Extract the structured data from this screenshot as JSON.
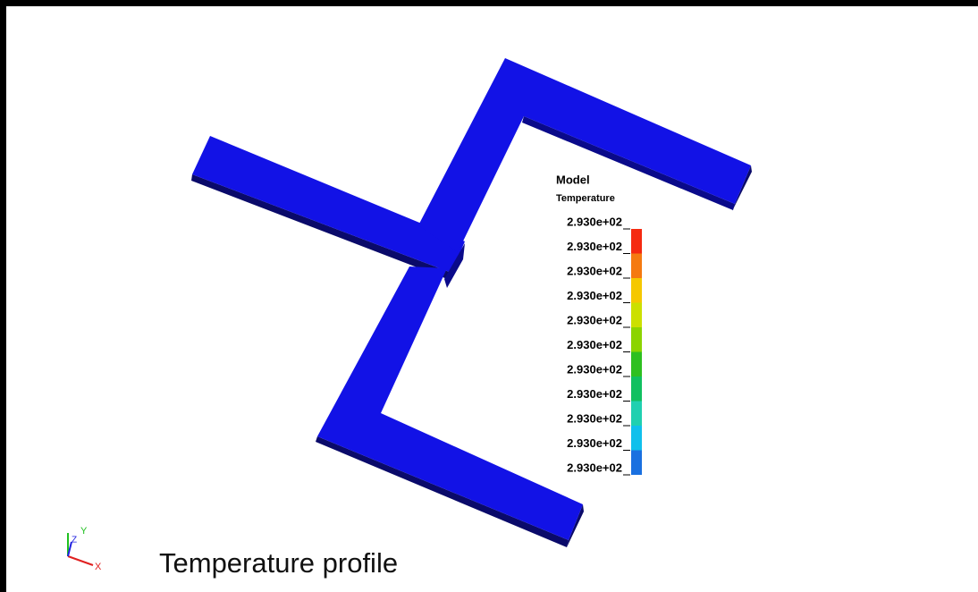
{
  "legend": {
    "title": "Model",
    "subtitle": "Temperature",
    "labels": [
      "2.930e+02",
      "2.930e+02",
      "2.930e+02",
      "2.930e+02",
      "2.930e+02",
      "2.930e+02",
      "2.930e+02",
      "2.930e+02",
      "2.930e+02",
      "2.930e+02",
      "2.930e+02"
    ]
  },
  "triad": {
    "x": "X",
    "y": "Y",
    "z": "Z"
  },
  "caption": "Temperature profile"
}
